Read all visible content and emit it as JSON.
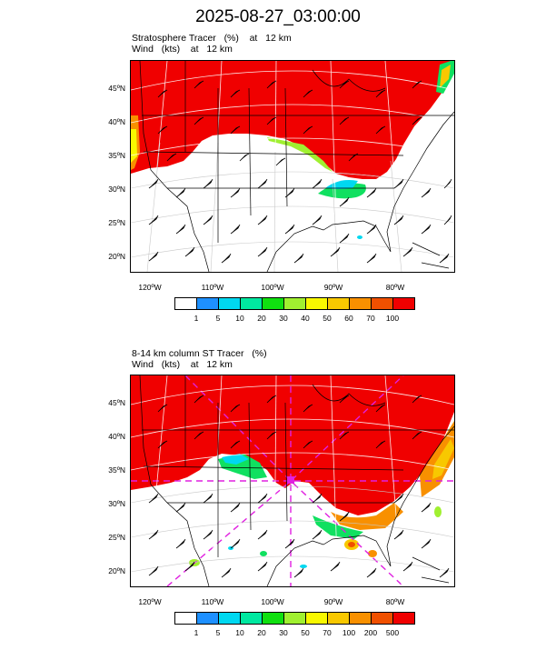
{
  "title": "2025-08-27_03:00:00",
  "panel_top": {
    "line1": {
      "field": "Stratosphere Tracer",
      "unit": "(%)",
      "at": "at",
      "level": "12 km"
    },
    "line2": {
      "field": "Wind",
      "unit": "(kts)",
      "at": "at",
      "level": "12 km"
    },
    "lat_labels": [
      "45ºN",
      "40ºN",
      "35ºN",
      "30ºN",
      "25ºN",
      "20ºN"
    ],
    "lon_labels": [
      "120ºW",
      "110ºW",
      "100ºW",
      "90ºW",
      "80ºW"
    ],
    "colorbar_labels": [
      "1",
      "5",
      "10",
      "20",
      "30",
      "40",
      "50",
      "60",
      "70",
      "100"
    ]
  },
  "panel_bottom": {
    "line1": {
      "field": "8-14 km column ST Tracer",
      "unit": "(%)",
      "at": "",
      "level": ""
    },
    "line2": {
      "field": "Wind",
      "unit": "(kts)",
      "at": "at",
      "level": "12 km"
    },
    "lat_labels": [
      "45ºN",
      "40ºN",
      "35ºN",
      "30ºN",
      "25ºN",
      "20ºN"
    ],
    "lon_labels": [
      "120ºW",
      "110ºW",
      "100ºW",
      "90ºW",
      "80ºW"
    ],
    "colorbar_labels": [
      "1",
      "5",
      "10",
      "20",
      "30",
      "50",
      "70",
      "100",
      "200",
      "500"
    ]
  },
  "colorbar_colors": [
    "#ffffff",
    "#1e90ff",
    "#00d8f0",
    "#00e8a0",
    "#10e010",
    "#a0f030",
    "#f8f800",
    "#f8c800",
    "#f89000",
    "#f05000",
    "#f00000"
  ]
}
